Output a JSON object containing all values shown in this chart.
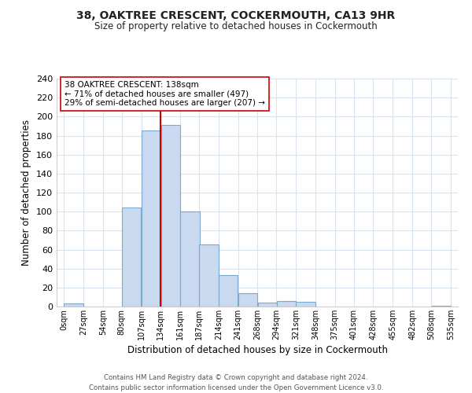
{
  "title": "38, OAKTREE CRESCENT, COCKERMOUTH, CA13 9HR",
  "subtitle": "Size of property relative to detached houses in Cockermouth",
  "xlabel": "Distribution of detached houses by size in Cockermouth",
  "ylabel": "Number of detached properties",
  "bar_left_edges": [
    0,
    27,
    54,
    80,
    107,
    134,
    161,
    187,
    214,
    241,
    268,
    294,
    321,
    348,
    375,
    401,
    428,
    455,
    482,
    509
  ],
  "bar_widths": [
    27,
    27,
    27,
    27,
    27,
    27,
    27,
    27,
    27,
    27,
    27,
    27,
    27,
    27,
    27,
    27,
    27,
    27,
    27,
    26
  ],
  "bar_heights": [
    3,
    0,
    0,
    104,
    185,
    191,
    100,
    65,
    33,
    14,
    4,
    6,
    5,
    0,
    0,
    0,
    0,
    0,
    0,
    1
  ],
  "bar_color": "#c8d9f0",
  "bar_edgecolor": "#7aaad0",
  "xtick_labels": [
    "0sqm",
    "27sqm",
    "54sqm",
    "80sqm",
    "107sqm",
    "134sqm",
    "161sqm",
    "187sqm",
    "214sqm",
    "241sqm",
    "268sqm",
    "294sqm",
    "321sqm",
    "348sqm",
    "375sqm",
    "401sqm",
    "428sqm",
    "455sqm",
    "482sqm",
    "508sqm",
    "535sqm"
  ],
  "xtick_positions": [
    0,
    27,
    54,
    80,
    107,
    134,
    161,
    187,
    214,
    241,
    268,
    294,
    321,
    348,
    375,
    401,
    428,
    455,
    482,
    508,
    535
  ],
  "xlim": [
    -10,
    545
  ],
  "ylim": [
    0,
    240
  ],
  "yticks": [
    0,
    20,
    40,
    60,
    80,
    100,
    120,
    140,
    160,
    180,
    200,
    220,
    240
  ],
  "vline_x": 134,
  "vline_color": "#cc0000",
  "annotation_title": "38 OAKTREE CRESCENT: 138sqm",
  "annotation_line1": "← 71% of detached houses are smaller (497)",
  "annotation_line2": "29% of semi-detached houses are larger (207) →",
  "footer1": "Contains HM Land Registry data © Crown copyright and database right 2024.",
  "footer2": "Contains public sector information licensed under the Open Government Licence v3.0.",
  "bg_color": "#ffffff",
  "grid_color": "#d8e4f0"
}
